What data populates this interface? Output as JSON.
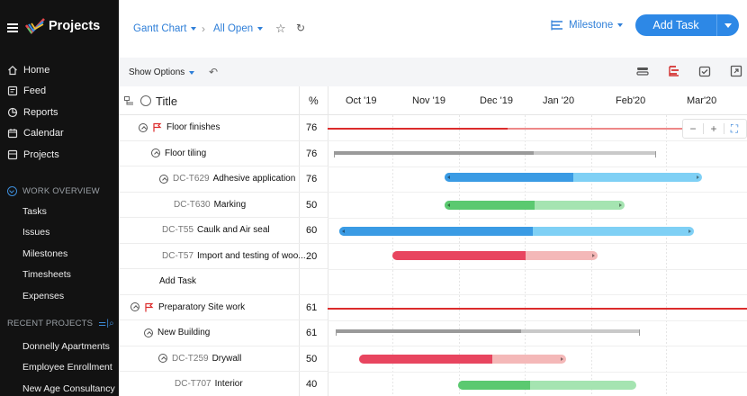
{
  "app": {
    "title": "Projects"
  },
  "sidebar": {
    "nav": [
      {
        "label": "Home",
        "icon": "home-icon"
      },
      {
        "label": "Feed",
        "icon": "feed-icon"
      },
      {
        "label": "Reports",
        "icon": "reports-icon"
      },
      {
        "label": "Calendar",
        "icon": "calendar-icon"
      },
      {
        "label": "Projects",
        "icon": "projects-icon"
      }
    ],
    "work_overview": {
      "title": "WORK OVERVIEW",
      "items": [
        "Tasks",
        "Issues",
        "Milestones",
        "Timesheets",
        "Expenses"
      ]
    },
    "recent_projects": {
      "title": "RECENT PROJECTS",
      "items": [
        "Donnelly Apartments",
        "Employee Enrollment",
        "New Age Consultancy"
      ]
    }
  },
  "header": {
    "view": "Gantt Chart",
    "filter": "All Open",
    "milestone": "Milestone",
    "add_task": "Add Task"
  },
  "toolbar": {
    "show_options": "Show Options"
  },
  "grid": {
    "col_title": "Title",
    "col_pct": "%",
    "months": [
      "Oct '19",
      "Nov '19",
      "Dec '19",
      "Jan '20",
      "Feb'20",
      "Mar'20"
    ],
    "add_task_link": "Add Task",
    "rows": [
      {
        "code": "",
        "name": "Floor finishes",
        "pct": "76",
        "type": "milestone"
      },
      {
        "code": "",
        "name": "Floor tiling",
        "pct": "76",
        "type": "parent"
      },
      {
        "code": "DC-T629",
        "name": "Adhesive application",
        "pct": "76",
        "type": "task"
      },
      {
        "code": "DC-T630",
        "name": "Marking",
        "pct": "50",
        "type": "task"
      },
      {
        "code": "DC-T55",
        "name": "Caulk and Air seal",
        "pct": "60",
        "type": "task"
      },
      {
        "code": "DC-T57",
        "name": "Import and testing of woo...",
        "pct": "20",
        "type": "task"
      },
      {
        "code": "",
        "name": "Add Task",
        "pct": "",
        "type": "add"
      },
      {
        "code": "",
        "name": "Preparatory Site work",
        "pct": "61",
        "type": "milestone"
      },
      {
        "code": "",
        "name": "New Building",
        "pct": "61",
        "type": "parent"
      },
      {
        "code": "DC-T259",
        "name": "Drywall",
        "pct": "50",
        "type": "task"
      },
      {
        "code": "DC-T707",
        "name": "Interior",
        "pct": "40",
        "type": "task"
      }
    ]
  },
  "colors": {
    "blue_dark": "#3a9be4",
    "blue_light": "#7fd0f5",
    "green_dark": "#5bc970",
    "green_light": "#a5e4b1",
    "red_dark": "#e8455f",
    "red_light": "#f4b8b8",
    "milestone_red": "#dc2b2b",
    "parent_gray": "#9a9a9a",
    "parent_light": "#c9c9c9"
  }
}
